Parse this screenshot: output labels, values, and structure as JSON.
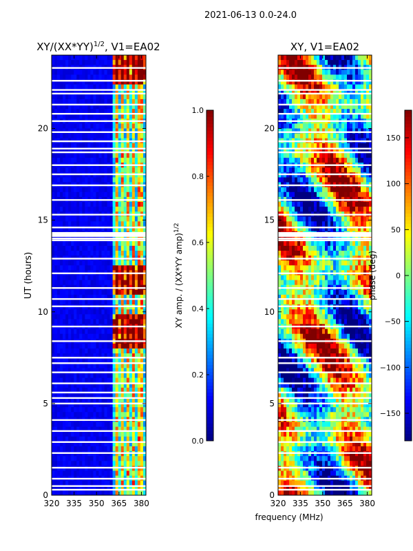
{
  "suptitle": "2021-06-13 0.0-24.0",
  "xlabel_shared": "frequency (MHz)",
  "chart_data": [
    {
      "type": "heatmap",
      "title_main": "XY/(XX*YY)",
      "title_sup": "1/2",
      "title_rest": ", V1=EA02",
      "xlim": [
        320,
        383
      ],
      "ylim": [
        0,
        24
      ],
      "xticks": [
        320,
        335,
        350,
        365,
        380
      ],
      "yticks": [
        0,
        5,
        10,
        15,
        20
      ],
      "ylabel": "UT (hours)",
      "colorscale": "jet",
      "colorbar": {
        "label_main": "XY amp. / (XX*YY amp)",
        "label_sup": "1/2",
        "min": 0.0,
        "max": 1.0,
        "ticks": [
          "0.0",
          "0.2",
          "0.4",
          "0.6",
          "0.8",
          "1.0"
        ]
      },
      "active_band_mhz": [
        361,
        381
      ],
      "blank_rows_hours": [
        0.3,
        0.5,
        0.9,
        1.5,
        2.3,
        2.9,
        3.5,
        4.1,
        5.0,
        5.3,
        5.6,
        6.1,
        6.7,
        7.2,
        7.5,
        8.4,
        9.2,
        10.3,
        10.7,
        11.3,
        12.1,
        12.9,
        13.9,
        14.0,
        14.6,
        15.3,
        16.1,
        16.9,
        17.5,
        18.0,
        18.7,
        18.9,
        19.3,
        19.8,
        20.4,
        20.8,
        21.3,
        21.9,
        22.1,
        22.6,
        23.3
      ]
    },
    {
      "type": "heatmap",
      "title_main": "XY, V1=EA02",
      "xlim": [
        320,
        383
      ],
      "ylim": [
        0,
        24
      ],
      "xticks": [
        320,
        335,
        350,
        365,
        380
      ],
      "yticks": [
        0,
        5,
        10,
        15,
        20
      ],
      "colorscale": "jet",
      "colorbar": {
        "label_main": "phase (deg)",
        "min": -180,
        "max": 180,
        "ticks": [
          "−150",
          "−100",
          "−50",
          "0",
          "50",
          "100",
          "150"
        ],
        "tick_values": [
          -150,
          -100,
          -50,
          0,
          50,
          100,
          150
        ]
      },
      "blank_rows_hours": [
        0.3,
        0.5,
        0.9,
        1.5,
        2.3,
        2.9,
        3.5,
        4.1,
        5.0,
        5.3,
        5.6,
        6.1,
        6.7,
        7.2,
        7.5,
        8.4,
        9.2,
        10.3,
        10.7,
        11.3,
        12.1,
        12.9,
        13.9,
        14.0,
        14.6,
        15.3,
        16.1,
        16.9,
        17.5,
        18.0,
        18.7,
        18.9,
        19.3,
        19.8,
        20.4,
        20.8,
        21.3,
        21.9,
        22.1,
        22.6,
        23.3
      ]
    }
  ]
}
